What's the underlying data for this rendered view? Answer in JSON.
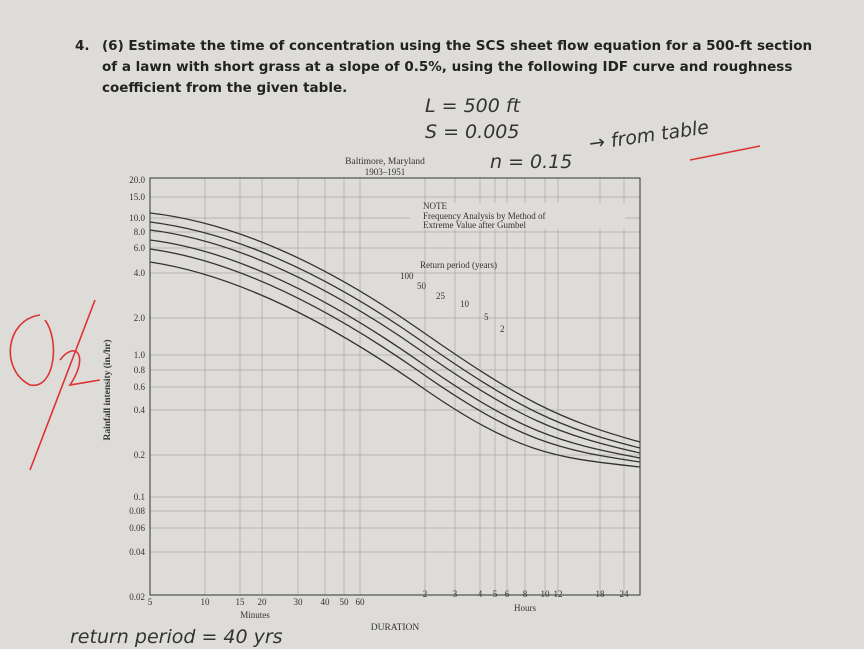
{
  "question": {
    "number": "4.",
    "lines": [
      "(6) Estimate the time of concentration using the SCS sheet flow equation for a 500-ft section",
      "of a lawn with short grass at a slope of 0.5%, using the following IDF curve and roughness",
      "coefficient from the given table."
    ]
  },
  "handwritten": {
    "length": "L = 500 ft",
    "slope": "S = 0.005",
    "roughness": "n = 0.15",
    "source": "→ from table",
    "answer": "return period = 40 yrs"
  },
  "figure": {
    "title": "Baltimore, Maryland",
    "subtitle": "1903–1951",
    "y_label": "Rainfall intensity (in./hr)",
    "yticks": [
      "20.0",
      "15.0",
      "10.0",
      "8.0",
      "6.0",
      "4.0",
      "2.0",
      "1.0",
      "0.8",
      "0.6",
      "0.4",
      "0.2",
      "0.1",
      "0.08",
      "0.06",
      "0.04",
      "0.02"
    ],
    "minute_ticks": [
      "5",
      "10",
      "15",
      "20",
      "30",
      "40",
      "50",
      "60"
    ],
    "minutes_label": "Minutes",
    "hour_ticks": [
      "2",
      "3",
      "4",
      "5",
      "6",
      "8",
      "10",
      "12",
      "18",
      "24"
    ],
    "hours_label": "Hours",
    "x_label": "DURATION",
    "note": [
      "NOTE",
      "Frequency Analysis by Method of",
      "Extreme Value after Gumbel"
    ],
    "return_label": "Return period (years)",
    "return_periods": [
      "100",
      "50",
      "25",
      "10",
      "5",
      "2"
    ]
  }
}
